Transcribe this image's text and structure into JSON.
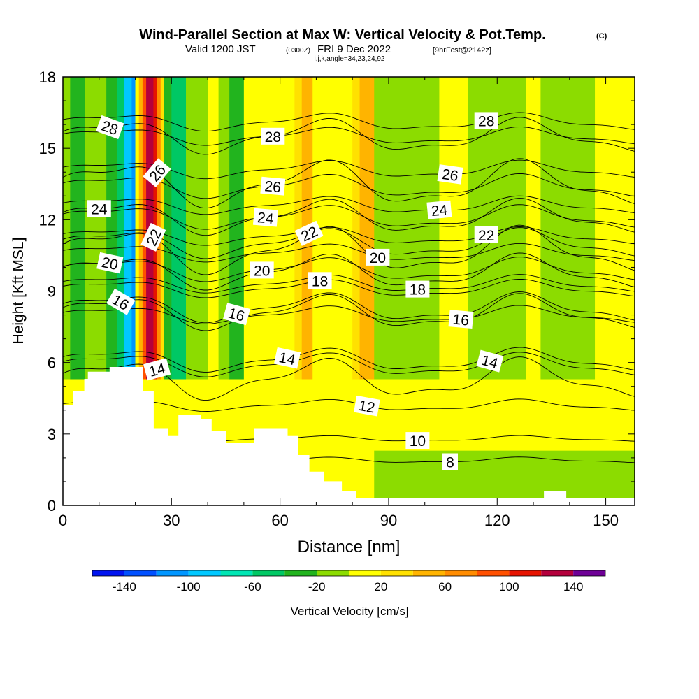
{
  "header": {
    "title_main": "Wind-Parallel Section at Max W: Vertical Velocity & Pot.Temp.",
    "title_mark": "(C)",
    "valid_prefix": "Valid 1200 JST",
    "valid_utc": "(0300Z)",
    "valid_date": "FRI 9 Dec 2022",
    "valid_fcst": "[9hrFcst@2142z]",
    "indices": "i,j,k,angle=34,23,24,92"
  },
  "chart_data": {
    "type": "heatmap",
    "title": "Wind-Parallel Section at Max W: Vertical Velocity & Pot.Temp.",
    "xlabel": "Distance [nm]",
    "ylabel": "Height [Kft MSL]",
    "xlim": [
      0,
      158
    ],
    "ylim": [
      0,
      18
    ],
    "x_ticks": [
      "0",
      "30",
      "60",
      "90",
      "120",
      "150"
    ],
    "y_ticks": [
      "0",
      "3",
      "6",
      "9",
      "12",
      "15",
      "18"
    ],
    "colorbar": {
      "label": "Vertical Velocity [cm/s]",
      "tick_labels": [
        "-140",
        "-100",
        "-60",
        "-20",
        "20",
        "60",
        "100",
        "140"
      ],
      "bins": [
        {
          "from": -160,
          "to": -140,
          "color": "#0014f0"
        },
        {
          "from": -140,
          "to": -120,
          "color": "#0050ff"
        },
        {
          "from": -120,
          "to": -100,
          "color": "#0096ff"
        },
        {
          "from": -100,
          "to": -80,
          "color": "#00c8ff"
        },
        {
          "from": -80,
          "to": -60,
          "color": "#00e6b4"
        },
        {
          "from": -60,
          "to": -40,
          "color": "#00c864"
        },
        {
          "from": -40,
          "to": -20,
          "color": "#22b41e"
        },
        {
          "from": -20,
          "to": 0,
          "color": "#8cdc00"
        },
        {
          "from": 0,
          "to": 20,
          "color": "#ffff00"
        },
        {
          "from": 20,
          "to": 40,
          "color": "#ffe100"
        },
        {
          "from": 40,
          "to": 60,
          "color": "#ffb400"
        },
        {
          "from": 60,
          "to": 80,
          "color": "#ff8c00"
        },
        {
          "from": 80,
          "to": 100,
          "color": "#ff5000"
        },
        {
          "from": 100,
          "to": 120,
          "color": "#e61400"
        },
        {
          "from": 120,
          "to": 140,
          "color": "#b4003c"
        },
        {
          "from": 140,
          "to": 160,
          "color": "#6e0096"
        }
      ]
    },
    "velocity_bands": [
      {
        "x_from": 0,
        "x_to": 2,
        "value": -10
      },
      {
        "x_from": 2,
        "x_to": 6,
        "value": -30
      },
      {
        "x_from": 6,
        "x_to": 12,
        "value": -10
      },
      {
        "x_from": 12,
        "x_to": 15,
        "value": -30
      },
      {
        "x_from": 15,
        "x_to": 17,
        "value": -50
      },
      {
        "x_from": 17,
        "x_to": 19,
        "value": -90
      },
      {
        "x_from": 19,
        "x_to": 20,
        "value": -110
      },
      {
        "x_from": 20,
        "x_to": 21,
        "value": 10
      },
      {
        "x_from": 21,
        "x_to": 22,
        "value": 50
      },
      {
        "x_from": 22,
        "x_to": 23,
        "value": 90
      },
      {
        "x_from": 23,
        "x_to": 25,
        "value": 130
      },
      {
        "x_from": 25,
        "x_to": 26,
        "value": 110
      },
      {
        "x_from": 26,
        "x_to": 27,
        "value": 70
      },
      {
        "x_from": 27,
        "x_to": 28,
        "value": 30
      },
      {
        "x_from": 28,
        "x_to": 30,
        "value": -30
      },
      {
        "x_from": 30,
        "x_to": 34,
        "value": -50
      },
      {
        "x_from": 34,
        "x_to": 40,
        "value": -10
      },
      {
        "x_from": 40,
        "x_to": 43,
        "value": 10
      },
      {
        "x_from": 43,
        "x_to": 46,
        "value": -10
      },
      {
        "x_from": 46,
        "x_to": 50,
        "value": -30
      },
      {
        "x_from": 50,
        "x_to": 58,
        "value": 10
      },
      {
        "x_from": 58,
        "x_to": 64,
        "value": 10
      },
      {
        "x_from": 64,
        "x_to": 66,
        "value": 30
      },
      {
        "x_from": 66,
        "x_to": 69,
        "value": 50
      },
      {
        "x_from": 69,
        "x_to": 72,
        "value": 10
      },
      {
        "x_from": 72,
        "x_to": 80,
        "value": 10
      },
      {
        "x_from": 80,
        "x_to": 82,
        "value": 30
      },
      {
        "x_from": 82,
        "x_to": 86,
        "value": 50
      },
      {
        "x_from": 86,
        "x_to": 90,
        "value": -10
      },
      {
        "x_from": 90,
        "x_to": 104,
        "value": -10
      },
      {
        "x_from": 104,
        "x_to": 112,
        "value": 10
      },
      {
        "x_from": 112,
        "x_to": 128,
        "value": -10
      },
      {
        "x_from": 128,
        "x_to": 132,
        "value": 10
      },
      {
        "x_from": 132,
        "x_to": 147,
        "value": -10
      },
      {
        "x_from": 147,
        "x_to": 158,
        "value": 10
      }
    ],
    "lower_layer": {
      "z_top": 5.3,
      "value": 10
    },
    "boundary_layer": {
      "x_from": 86,
      "x_to": 158,
      "z_top": 2.3,
      "value": -10
    },
    "terrain": [
      [
        0,
        4.2
      ],
      [
        3,
        4.2
      ],
      [
        3,
        4.8
      ],
      [
        6,
        4.8
      ],
      [
        6,
        5.3
      ],
      [
        7,
        5.3
      ],
      [
        7,
        5.6
      ],
      [
        13,
        5.6
      ],
      [
        13,
        5.8
      ],
      [
        22,
        5.8
      ],
      [
        22,
        4.8
      ],
      [
        25,
        4.8
      ],
      [
        25,
        3.2
      ],
      [
        29,
        3.2
      ],
      [
        29,
        2.9
      ],
      [
        32,
        2.9
      ],
      [
        32,
        3.8
      ],
      [
        38,
        3.8
      ],
      [
        38,
        3.6
      ],
      [
        41,
        3.6
      ],
      [
        41,
        3.1
      ],
      [
        45,
        3.1
      ],
      [
        45,
        2.6
      ],
      [
        53,
        2.6
      ],
      [
        53,
        3.2
      ],
      [
        62,
        3.2
      ],
      [
        62,
        2.9
      ],
      [
        65,
        2.9
      ],
      [
        65,
        2.1
      ],
      [
        68,
        2.1
      ],
      [
        68,
        1.4
      ],
      [
        72,
        1.4
      ],
      [
        72,
        1.0
      ],
      [
        77,
        1.0
      ],
      [
        77,
        0.6
      ],
      [
        81,
        0.6
      ],
      [
        81,
        0.3
      ],
      [
        133,
        0.3
      ],
      [
        133,
        0.6
      ],
      [
        139,
        0.6
      ],
      [
        139,
        0.3
      ],
      [
        158,
        0.3
      ]
    ],
    "theta_contours": [
      {
        "base": 5.3,
        "amp": 0.7,
        "label": "14",
        "label_x": 26,
        "label_angle": -15
      },
      {
        "base": 6.1,
        "amp": 0.4,
        "label": "14",
        "label_x": 62,
        "label_angle": 12
      },
      {
        "base": 5.9,
        "amp": 0.4,
        "label": "14",
        "label_x": 118,
        "label_angle": 15
      },
      {
        "base": 4.2,
        "amp": 0.2,
        "label": "12",
        "label_x": 84,
        "label_angle": 10
      },
      {
        "base": 2.8,
        "amp": 0.1,
        "label": "10",
        "label_x": 98,
        "label_angle": 0
      },
      {
        "base": 1.9,
        "amp": 0.1,
        "label": "8",
        "label_x": 107,
        "label_angle": 0
      },
      {
        "base": 8.1,
        "amp": 0.6,
        "label": "16",
        "label_x": 16,
        "label_angle": 30
      },
      {
        "base": 8.3,
        "amp": 0.5,
        "label": "16",
        "label_x": 48,
        "label_angle": 15
      },
      {
        "base": 8.0,
        "amp": 0.3,
        "label": "16",
        "label_x": 110,
        "label_angle": 5
      },
      {
        "base": 9.1,
        "amp": 0.3,
        "label": "18",
        "label_x": 71,
        "label_angle": 0
      },
      {
        "base": 9.3,
        "amp": 0.3,
        "label": "18",
        "label_x": 98,
        "label_angle": 0
      },
      {
        "base": 9.8,
        "amp": 0.6,
        "label": "20",
        "label_x": 13,
        "label_angle": 12
      },
      {
        "base": 9.9,
        "amp": 0.4,
        "label": "20",
        "label_x": 55,
        "label_angle": 0
      },
      {
        "base": 10.6,
        "amp": 0.3,
        "label": "20",
        "label_x": 87,
        "label_angle": 0
      },
      {
        "base": 10.7,
        "amp": 0.8,
        "label": "22",
        "label_x": 25,
        "label_angle": -65
      },
      {
        "base": 11.0,
        "amp": 0.5,
        "label": "22",
        "label_x": 68,
        "label_angle": -25
      },
      {
        "base": 11.3,
        "amp": 0.3,
        "label": "22",
        "label_x": 117,
        "label_angle": 0
      },
      {
        "base": 12.1,
        "amp": 0.6,
        "label": "24",
        "label_x": 10,
        "label_angle": 0
      },
      {
        "base": 12.1,
        "amp": 0.4,
        "label": "24",
        "label_x": 56,
        "label_angle": 5
      },
      {
        "base": 12.6,
        "amp": 0.3,
        "label": "24",
        "label_x": 104,
        "label_angle": -5
      },
      {
        "base": 13.5,
        "amp": 0.8,
        "label": "26",
        "label_x": 26,
        "label_angle": -50
      },
      {
        "base": 13.4,
        "amp": 0.4,
        "label": "26",
        "label_x": 58,
        "label_angle": 5
      },
      {
        "base": 14.1,
        "amp": 0.3,
        "label": "26",
        "label_x": 107,
        "label_angle": 8
      },
      {
        "base": 15.5,
        "amp": 0.6,
        "label": "28",
        "label_x": 13,
        "label_angle": 20
      },
      {
        "base": 15.5,
        "amp": 0.3,
        "label": "28",
        "label_x": 58,
        "label_angle": 0
      },
      {
        "base": 16.1,
        "amp": 0.3,
        "label": "28",
        "label_x": 117,
        "label_angle": 0
      }
    ]
  }
}
